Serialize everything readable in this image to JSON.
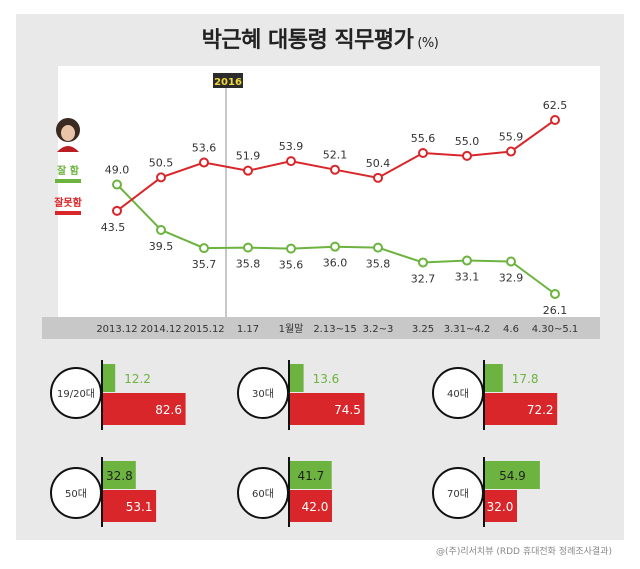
{
  "title": "박근혜 대통령 직무평가",
  "title_unit": "(%)",
  "source": "@(주)리서치뷰 (RDD 휴대전화 정례조사결과)",
  "year_marker": "2016",
  "legend": {
    "approve": "잘 함",
    "disapprove": "잘못함",
    "photo_icon": "portrait-icon"
  },
  "colors": {
    "approve": "#6cb33f",
    "disapprove": "#d9262a",
    "axis_band": "#c8c8c8",
    "panel": "#e9e9e9"
  },
  "chart_data": [
    {
      "type": "line",
      "categories": [
        "2013.12",
        "2014.12",
        "2015.12",
        "1.17",
        "1월말",
        "2.13~15",
        "3.2~3",
        "3.25",
        "3.31~4.2",
        "4.6",
        "4.30~5.1"
      ],
      "series": [
        {
          "name": "잘 함",
          "values": [
            49.0,
            39.5,
            35.7,
            35.8,
            35.6,
            36.0,
            35.8,
            32.7,
            33.1,
            32.9,
            26.1
          ]
        },
        {
          "name": "잘못함",
          "values": [
            43.5,
            50.5,
            53.6,
            51.9,
            53.9,
            52.1,
            50.4,
            55.6,
            55.0,
            55.9,
            62.5
          ]
        }
      ],
      "value_labels": {
        "approve": [
          "49.0",
          "39.5",
          "35.7",
          "35.8",
          "35.6",
          "36.0",
          "35.8",
          "32.7",
          "33.1",
          "32.9",
          "26.1"
        ],
        "disapprove": [
          "43.5",
          "50.5",
          "53.6",
          "51.9",
          "53.9",
          "52.1",
          "50.4",
          "55.6",
          "55.0",
          "55.9",
          "62.5"
        ]
      },
      "ylim": [
        20,
        70
      ]
    },
    {
      "type": "bar",
      "categories": [
        "19/20대",
        "30대",
        "40대",
        "50대",
        "60대",
        "70대"
      ],
      "series": [
        {
          "name": "잘 함",
          "values": [
            12.2,
            13.6,
            17.8,
            32.8,
            41.7,
            54.9
          ]
        },
        {
          "name": "잘못함",
          "values": [
            82.6,
            74.5,
            72.2,
            53.1,
            42.0,
            32.0
          ]
        }
      ],
      "value_labels": {
        "approve": [
          "12.2",
          "13.6",
          "17.8",
          "32.8",
          "41.7",
          "54.9"
        ],
        "disapprove": [
          "82.6",
          "74.5",
          "72.2",
          "53.1",
          "42.0",
          "32.0"
        ]
      }
    }
  ]
}
